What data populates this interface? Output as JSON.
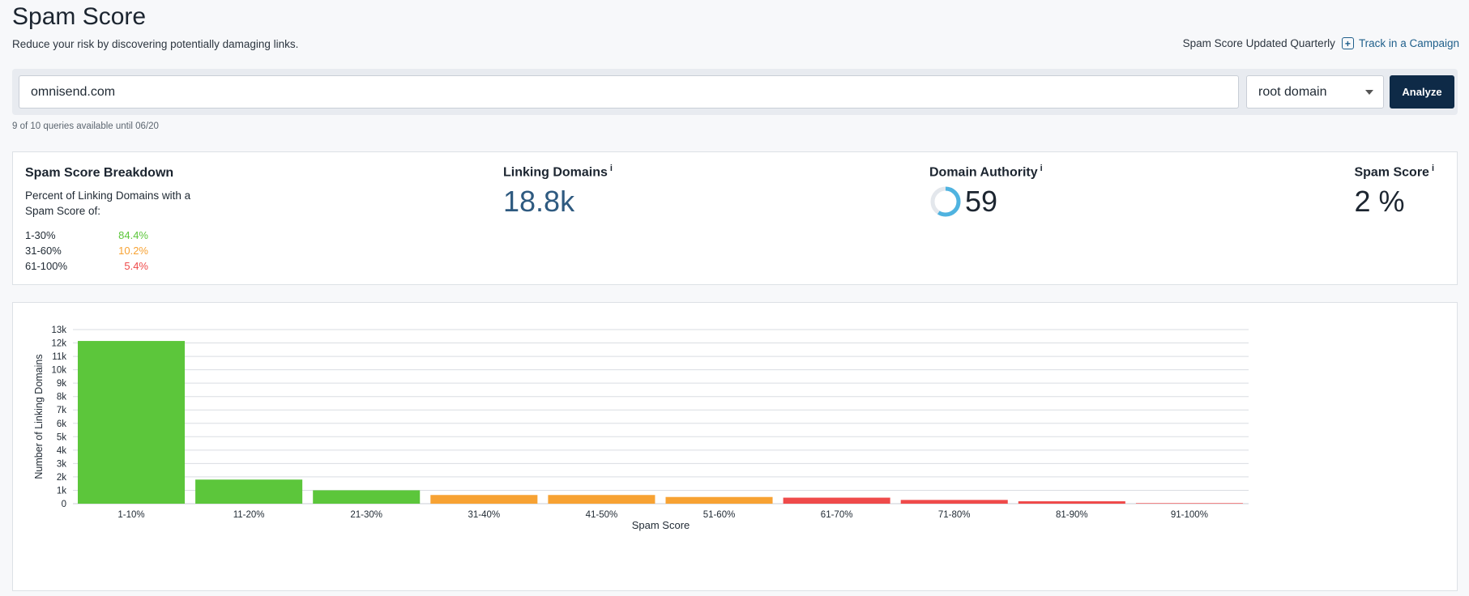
{
  "header": {
    "title": "Spam Score",
    "subtitle": "Reduce your risk by discovering potentially damaging links.",
    "updated_text": "Spam Score Updated Quarterly",
    "track_link": "Track in a Campaign"
  },
  "search": {
    "value": "omnisend.com",
    "scope": "root domain",
    "analyze_label": "Analyze",
    "queries_note": "9 of 10 queries available until 06/20"
  },
  "breakdown": {
    "title": "Spam Score Breakdown",
    "description": "Percent of Linking Domains with a Spam Score of:",
    "rows": [
      {
        "range": "1-30%",
        "value": "84.4%",
        "color": "#5cc63b"
      },
      {
        "range": "31-60%",
        "value": "10.2%",
        "color": "#f7a233"
      },
      {
        "range": "61-100%",
        "value": "5.4%",
        "color": "#ef4a4a"
      }
    ]
  },
  "stats": {
    "linking_domains_label": "Linking Domains",
    "linking_domains_value": "18.8k",
    "domain_authority_label": "Domain Authority",
    "domain_authority_value": "59",
    "spam_score_label": "Spam Score",
    "spam_score_value": "2 %",
    "info_symbol": "i"
  },
  "colors": {
    "low": "#5cc63b",
    "medium": "#f7a233",
    "high": "#ef4a4a",
    "da_ring": "#4fb3e0"
  },
  "chart_data": {
    "type": "bar",
    "xlabel": "Spam Score",
    "ylabel": "Number of Linking Domains",
    "ylim": [
      0,
      13000
    ],
    "yticks": [
      "0",
      "1k",
      "2k",
      "3k",
      "4k",
      "5k",
      "6k",
      "7k",
      "8k",
      "9k",
      "10k",
      "11k",
      "12k",
      "13k"
    ],
    "categories": [
      "1-10%",
      "11-20%",
      "21-30%",
      "31-40%",
      "41-50%",
      "51-60%",
      "61-70%",
      "71-80%",
      "81-90%",
      "91-100%"
    ],
    "values": [
      12150,
      1800,
      1000,
      650,
      650,
      500,
      450,
      280,
      180,
      40
    ],
    "bar_colors": [
      "#5cc63b",
      "#5cc63b",
      "#5cc63b",
      "#f7a233",
      "#f7a233",
      "#f7a233",
      "#ef4a4a",
      "#ef4a4a",
      "#ef4a4a",
      "#ef4a4a"
    ],
    "grid": true
  }
}
